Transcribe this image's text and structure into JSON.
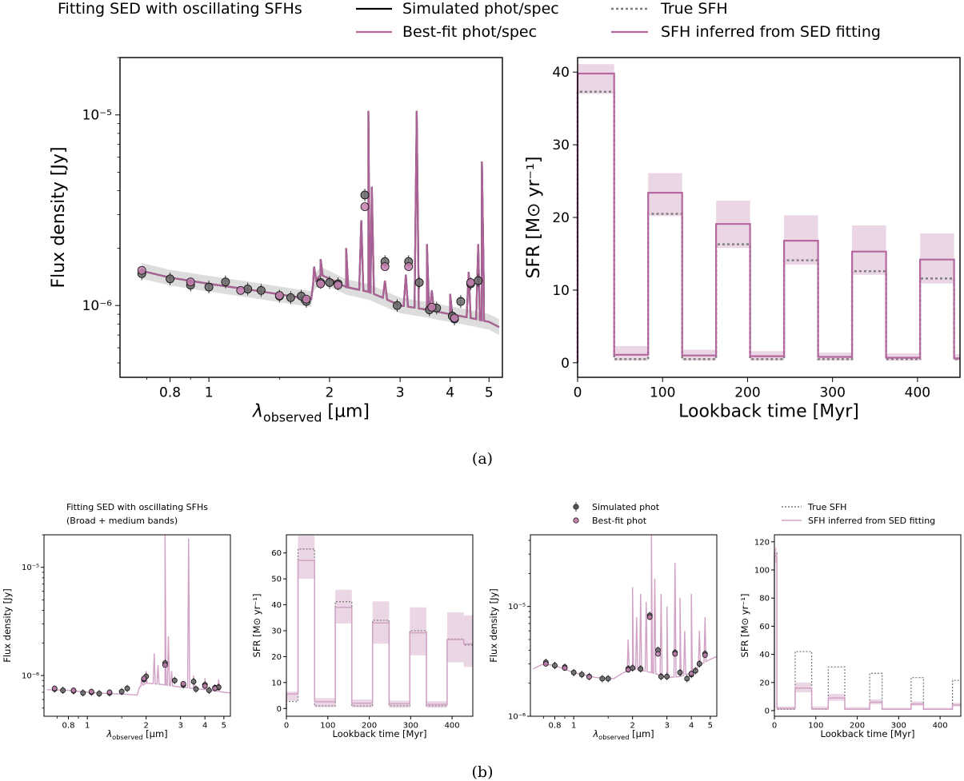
{
  "colors": {
    "pink": "#b5679f",
    "pink_light": "#d2a2c6",
    "fill": "#e8cfe1",
    "true_sfh": "#7f7f7f",
    "sim": "#000000",
    "gray_band": "#cfcfcf"
  },
  "captions": {
    "a": "(a)",
    "b": "(b)"
  },
  "top_legend": {
    "title": "Fitting SED with oscillating SFHs",
    "simulated": "Simulated phot/spec",
    "bestfit": "Best-fit phot/spec",
    "true_sfh": "True SFH",
    "inferred": "SFH inferred from SED fitting"
  },
  "bottom_legend": {
    "title1": "Fitting SED with oscillating SFHs",
    "title2": "(Broad + medium bands)",
    "sim_phot": "Simulated phot",
    "best_phot": "Best-fit phot",
    "true_sfh": "True SFH",
    "inferred": "SFH inferred from SED fitting"
  },
  "chart_data": [
    {
      "id": "sed_a",
      "type": "line",
      "xlabel": "λ_observed [µm]",
      "ylabel": "Flux density [Jy]",
      "xscale": "log",
      "yscale": "log",
      "xlim": [
        0.6,
        5.4
      ],
      "ylim": [
        4.2e-07,
        2e-05
      ],
      "xticks": [
        0.8,
        1,
        2,
        3,
        4,
        5
      ],
      "xticklabels": [
        "0.8",
        "1",
        "2",
        "3",
        "4",
        "5"
      ],
      "yticks": [
        1e-06,
        1e-05
      ],
      "yticklabels": [
        "10⁻⁶",
        "10⁻⁵"
      ],
      "continuum": [
        [
          0.68,
          1.52e-06
        ],
        [
          0.8,
          1.4e-06
        ],
        [
          1.0,
          1.3e-06
        ],
        [
          1.3,
          1.2e-06
        ],
        [
          1.6,
          1.12e-06
        ],
        [
          1.8,
          1.08e-06
        ],
        [
          1.82,
          1.3e-06
        ],
        [
          1.9,
          1.45e-06
        ],
        [
          2.0,
          1.38e-06
        ],
        [
          2.2,
          1.25e-06
        ],
        [
          2.5,
          1.18e-06
        ],
        [
          3.0,
          1e-06
        ],
        [
          3.5,
          9.5e-07
        ],
        [
          4.0,
          9e-07
        ],
        [
          4.5,
          8.6e-07
        ],
        [
          5.0,
          8.2e-07
        ],
        [
          5.3,
          7.7e-07
        ]
      ],
      "lines": [
        [
          1.83,
          1.6e-06
        ],
        [
          1.9,
          1.75e-06
        ],
        [
          2.2,
          2e-06
        ],
        [
          2.4,
          2.8e-06
        ],
        [
          2.5,
          1.05e-05
        ],
        [
          2.55,
          4.2e-06
        ],
        [
          2.75,
          1.35e-06
        ],
        [
          3.1,
          1.45e-06
        ],
        [
          3.3,
          1.05e-05
        ],
        [
          3.5,
          2.1e-06
        ],
        [
          3.6,
          1.2e-06
        ],
        [
          4.0,
          1.15e-06
        ],
        [
          4.45,
          1.5e-06
        ],
        [
          4.7,
          2.1e-06
        ],
        [
          4.8,
          5.7e-06
        ],
        [
          4.85,
          1.4e-06
        ]
      ],
      "series": [
        {
          "name": "Simulated phot",
          "points": [
            [
              0.68,
              1.47e-06
            ],
            [
              0.8,
              1.38e-06
            ],
            [
              0.9,
              1.28e-06
            ],
            [
              1.0,
              1.25e-06
            ],
            [
              1.1,
              1.33e-06
            ],
            [
              1.25,
              1.22e-06
            ],
            [
              1.35,
              1.2e-06
            ],
            [
              1.5,
              1.12e-06
            ],
            [
              1.6,
              1.1e-06
            ],
            [
              1.7,
              1.12e-06
            ],
            [
              1.75,
              1.05e-06
            ],
            [
              1.9,
              1.32e-06
            ],
            [
              2.0,
              1.32e-06
            ],
            [
              2.1,
              1.3e-06
            ],
            [
              2.45,
              3.8e-06
            ],
            [
              2.75,
              1.7e-06
            ],
            [
              2.95,
              1e-06
            ],
            [
              3.15,
              1.7e-06
            ],
            [
              3.35,
              1.32e-06
            ],
            [
              3.55,
              9.5e-07
            ],
            [
              3.7,
              9.7e-07
            ],
            [
              4.05,
              8.8e-07
            ],
            [
              4.1,
              8.5e-07
            ],
            [
              4.25,
              1.05e-06
            ],
            [
              4.5,
              1.3e-06
            ],
            [
              4.7,
              1.35e-06
            ]
          ]
        },
        {
          "name": "Best-fit phot",
          "points": [
            [
              0.68,
              1.53e-06
            ],
            [
              0.9,
              1.33e-06
            ],
            [
              1.2,
              1.2e-06
            ],
            [
              1.5,
              1.13e-06
            ],
            [
              1.75,
              1.08e-06
            ],
            [
              1.9,
              1.3e-06
            ],
            [
              2.1,
              1.28e-06
            ],
            [
              2.45,
              3.3e-06
            ],
            [
              2.75,
              1.6e-06
            ],
            [
              3.15,
              1.6e-06
            ],
            [
              3.6,
              9.8e-07
            ],
            [
              4.1,
              8.6e-07
            ],
            [
              4.5,
              1.32e-06
            ]
          ]
        }
      ]
    },
    {
      "id": "sfh_a",
      "type": "line",
      "xlabel": "Lookback time [Myr]",
      "ylabel": "SFR [M⊙ yr⁻¹]",
      "xlim": [
        0,
        450
      ],
      "ylim": [
        -2,
        42
      ],
      "xticks": [
        0,
        100,
        200,
        300,
        400
      ],
      "yticks": [
        0,
        10,
        20,
        30,
        40
      ],
      "bin_edges": [
        0,
        43,
        83,
        123,
        163,
        203,
        243,
        283,
        323,
        363,
        403,
        443,
        450
      ],
      "true_sfh": [
        37.3,
        0.5,
        20.5,
        0.5,
        16.3,
        0.5,
        14.1,
        0.5,
        12.6,
        0.5,
        11.6,
        0.5
      ],
      "inferred": [
        39.8,
        1.1,
        23.4,
        1.0,
        19.1,
        0.9,
        16.8,
        0.8,
        15.3,
        0.7,
        14.2,
        0.6
      ],
      "band_low": [
        37,
        0.3,
        20.2,
        0.3,
        15.8,
        0.3,
        13.5,
        0.3,
        12.1,
        0.3,
        10.9,
        0.3
      ],
      "band_high": [
        41.1,
        2.3,
        26.1,
        1.8,
        22.3,
        1.6,
        20.3,
        1.4,
        18.9,
        1.3,
        17.8,
        1.2
      ]
    },
    {
      "id": "sed_b1",
      "type": "line",
      "xlabel": "λ_observed [µm]",
      "ylabel": "Flux density [Jy]",
      "xscale": "log",
      "yscale": "log",
      "xlim": [
        0.6,
        5.4
      ],
      "ylim": [
        4.2e-07,
        2e-05
      ],
      "xticks": [
        0.8,
        1,
        2,
        3,
        4,
        5
      ],
      "xticklabels": [
        "0.8",
        "1",
        "2",
        "3",
        "4",
        "5"
      ],
      "yticks": [
        1e-06,
        1e-05
      ],
      "yticklabels": [
        "10⁻⁶",
        "10⁻⁵"
      ],
      "continuum": [
        [
          0.62,
          7.4e-07
        ],
        [
          0.8,
          7.3e-07
        ],
        [
          1.0,
          7e-07
        ],
        [
          1.3,
          6.8e-07
        ],
        [
          1.6,
          6.7e-07
        ],
        [
          1.8,
          6.6e-07
        ],
        [
          1.85,
          7.8e-07
        ],
        [
          2.0,
          8.5e-07
        ],
        [
          2.5,
          8.2e-07
        ],
        [
          3.0,
          7.8e-07
        ],
        [
          3.5,
          7.6e-07
        ],
        [
          4.0,
          7.4e-07
        ],
        [
          4.5,
          7.2e-07
        ],
        [
          5.0,
          7e-07
        ],
        [
          5.4,
          6.9e-07
        ]
      ],
      "lines": [
        [
          1.9,
          9.5e-07
        ],
        [
          2.0,
          1.1e-06
        ],
        [
          2.2,
          1.6e-06
        ],
        [
          2.3,
          1.25e-06
        ],
        [
          2.5,
          2e-05
        ],
        [
          2.6,
          2.3e-06
        ],
        [
          2.7,
          1.1e-06
        ],
        [
          3.3,
          1.85e-05
        ],
        [
          3.5,
          1e-06
        ],
        [
          4.0,
          9.5e-07
        ],
        [
          4.7,
          9.2e-07
        ]
      ],
      "series": [
        {
          "name": "Simulated phot",
          "points": [
            [
              0.68,
              7.5e-07
            ],
            [
              0.75,
              7.3e-07
            ],
            [
              0.85,
              7.2e-07
            ],
            [
              0.95,
              6.9e-07
            ],
            [
              1.05,
              7e-07
            ],
            [
              1.15,
              6.8e-07
            ],
            [
              1.3,
              6.9e-07
            ],
            [
              1.5,
              7.1e-07
            ],
            [
              1.6,
              7.6e-07
            ],
            [
              1.95,
              9.2e-07
            ],
            [
              2.0,
              9.8e-07
            ],
            [
              2.5,
              1.3e-06
            ],
            [
              2.8,
              9e-07
            ],
            [
              3.1,
              8.2e-07
            ],
            [
              3.5,
              8.8e-07
            ],
            [
              3.6,
              7.5e-07
            ],
            [
              4.0,
              8.2e-07
            ],
            [
              4.2,
              7.3e-07
            ],
            [
              4.5,
              7.7e-07
            ],
            [
              4.7,
              7.8e-07
            ]
          ]
        },
        {
          "name": "Best-fit phot",
          "points": [
            [
              0.68,
              7.6e-07
            ],
            [
              0.85,
              7.3e-07
            ],
            [
              1.05,
              7.1e-07
            ],
            [
              1.3,
              7e-07
            ],
            [
              1.95,
              9.4e-07
            ],
            [
              2.5,
              1.25e-06
            ],
            [
              3.1,
              8.4e-07
            ],
            [
              4.0,
              8e-07
            ],
            [
              4.5,
              7.6e-07
            ]
          ]
        }
      ]
    },
    {
      "id": "sfh_b1",
      "type": "line",
      "xlabel": "Lookback time [Myr]",
      "ylabel": "SFR [M⊙ yr⁻¹]",
      "xlim": [
        0,
        450
      ],
      "ylim": [
        -3,
        67
      ],
      "xticks": [
        0,
        100,
        200,
        300,
        400
      ],
      "yticks": [
        0,
        10,
        20,
        30,
        40,
        50,
        60
      ],
      "bin_edges": [
        0,
        28,
        68,
        118,
        158,
        208,
        248,
        298,
        338,
        388,
        428,
        450
      ],
      "true_sfh": [
        2.7,
        61.5,
        1.0,
        41.2,
        1.0,
        34.0,
        1.0,
        30.0,
        1.0,
        26.8,
        24.5
      ],
      "inferred": [
        5.6,
        57.1,
        2.6,
        39.0,
        2.0,
        33.0,
        1.8,
        29.2,
        1.6,
        26.6,
        24.9
      ],
      "band_low": [
        3,
        50,
        0.5,
        32.8,
        0.4,
        25,
        0.3,
        20.5,
        0.3,
        17.8,
        16
      ],
      "band_high": [
        6.5,
        66.7,
        4,
        45.8,
        3.5,
        41.3,
        3,
        39,
        2.8,
        37.1,
        35.9
      ]
    },
    {
      "id": "sed_b2",
      "type": "line",
      "xlabel": "λ_observed [µm]",
      "ylabel": "Flux density [Jy]",
      "xscale": "log",
      "yscale": "log",
      "xlim": [
        0.6,
        5.4
      ],
      "ylim": [
        1e-06,
        4.5e-05
      ],
      "xticks": [
        0.8,
        1,
        2,
        3,
        4,
        5
      ],
      "xticklabels": [
        "0.8",
        "1",
        "2",
        "3",
        "4",
        "5"
      ],
      "yticks": [
        1e-06,
        1e-05
      ],
      "yticklabels": [
        "10⁻⁶",
        "10⁻⁵"
      ],
      "continuum": [
        [
          0.62,
          2.7e-06
        ],
        [
          0.7,
          3e-06
        ],
        [
          0.8,
          2.9e-06
        ],
        [
          1.0,
          2.5e-06
        ],
        [
          1.3,
          2.25e-06
        ],
        [
          1.6,
          2.2e-06
        ],
        [
          1.8,
          2.5e-06
        ],
        [
          2.0,
          2.7e-06
        ],
        [
          2.5,
          2.5e-06
        ],
        [
          3.0,
          2.25e-06
        ],
        [
          3.5,
          2.3e-06
        ],
        [
          4.0,
          2.5e-06
        ],
        [
          4.5,
          3e-06
        ],
        [
          5.0,
          3.3e-06
        ],
        [
          5.4,
          3.5e-06
        ]
      ],
      "lines": [
        [
          1.9,
          5e-06
        ],
        [
          2.0,
          1.5e-05
        ],
        [
          2.1,
          8e-06
        ],
        [
          2.2,
          1.3e-05
        ],
        [
          2.35,
          1.1e-05
        ],
        [
          2.5,
          4.5e-05
        ],
        [
          2.6,
          1.8e-05
        ],
        [
          2.8,
          1.3e-05
        ],
        [
          3.0,
          1e-05
        ],
        [
          3.3,
          2.5e-05
        ],
        [
          3.5,
          1.2e-05
        ],
        [
          3.7,
          6e-06
        ],
        [
          4.0,
          1.3e-05
        ],
        [
          4.4,
          6e-06
        ],
        [
          4.7,
          8e-06
        ]
      ],
      "series": [
        {
          "name": "Simulated phot",
          "points": [
            [
              0.72,
              3.1e-06
            ],
            [
              0.8,
              2.9e-06
            ],
            [
              0.9,
              2.8e-06
            ],
            [
              1.0,
              2.5e-06
            ],
            [
              1.1,
              2.4e-06
            ],
            [
              1.2,
              2.3e-06
            ],
            [
              1.4,
              2.2e-06
            ],
            [
              1.5,
              2.2e-06
            ],
            [
              1.9,
              2.7e-06
            ],
            [
              2.0,
              2.75e-06
            ],
            [
              2.2,
              2.7e-06
            ],
            [
              2.45,
              8.3e-06
            ],
            [
              2.7,
              4e-06
            ],
            [
              2.8,
              2.3e-06
            ],
            [
              3.0,
              2.3e-06
            ],
            [
              3.3,
              3.8e-06
            ],
            [
              3.5,
              2.5e-06
            ],
            [
              3.8,
              2.2e-06
            ],
            [
              4.0,
              2.4e-06
            ],
            [
              4.2,
              2.6e-06
            ],
            [
              4.4,
              3e-06
            ],
            [
              4.7,
              3.7e-06
            ]
          ]
        },
        {
          "name": "Best-fit phot",
          "points": [
            [
              0.72,
              3e-06
            ],
            [
              0.9,
              2.75e-06
            ],
            [
              1.2,
              2.28e-06
            ],
            [
              1.9,
              2.65e-06
            ],
            [
              2.45,
              8e-06
            ],
            [
              2.7,
              3.7e-06
            ],
            [
              3.3,
              3.7e-06
            ],
            [
              4.0,
              2.45e-06
            ],
            [
              4.7,
              3.6e-06
            ]
          ]
        }
      ]
    },
    {
      "id": "sfh_b2",
      "type": "line",
      "xlabel": "Lookback time [Myr]",
      "ylabel": "SFR [M⊙ yr⁻¹]",
      "xlim": [
        0,
        450
      ],
      "ylim": [
        -4,
        125
      ],
      "xticks": [
        0,
        100,
        200,
        300,
        400
      ],
      "yticks": [
        0,
        20,
        40,
        60,
        80,
        100,
        120
      ],
      "bin_edges": [
        0,
        6,
        50,
        90,
        130,
        170,
        230,
        260,
        330,
        360,
        430,
        450
      ],
      "true_sfh": [
        112,
        1,
        42,
        1,
        31,
        1,
        26.5,
        1,
        23.5,
        1,
        21.5
      ],
      "inferred": [
        110,
        1.5,
        16,
        1.2,
        9,
        1,
        6,
        1,
        4.7,
        1,
        4
      ],
      "band_low": [
        105,
        0.5,
        13,
        0.5,
        7,
        0.5,
        4.5,
        0.5,
        3.5,
        0.5,
        3
      ],
      "band_high": [
        116,
        3,
        20,
        3,
        12,
        2.5,
        8,
        2,
        6.5,
        2,
        5.5
      ]
    }
  ]
}
